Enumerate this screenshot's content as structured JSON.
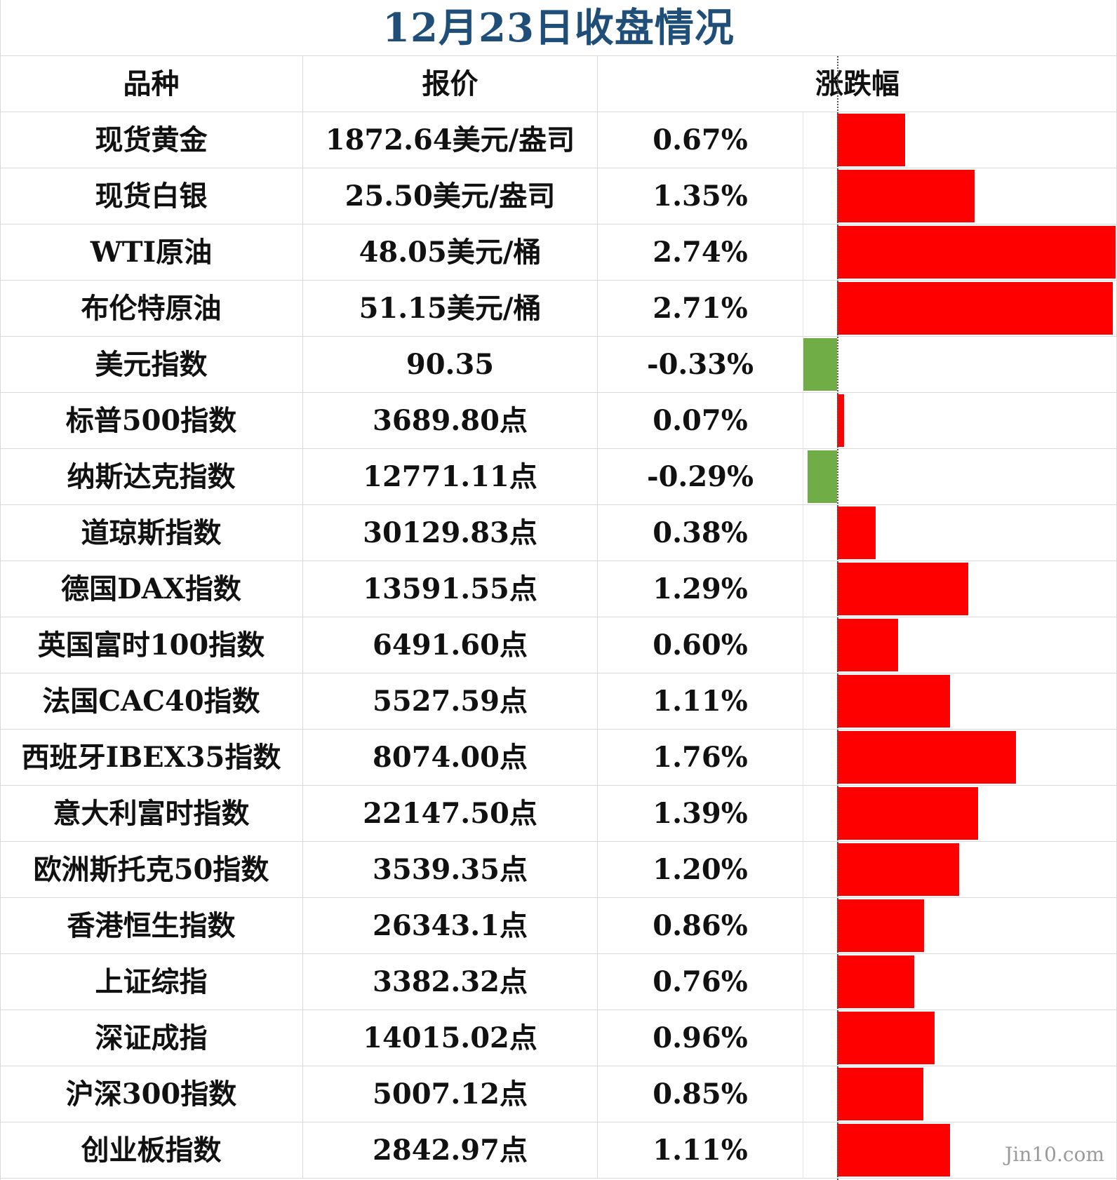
{
  "title": "12月23日收盘情况",
  "watermark": "Jin10.com",
  "colors": {
    "title": "#1f4e79",
    "positive": "#ff0000",
    "negative": "#70ad47"
  },
  "chart_data": {
    "type": "bar",
    "headers": [
      "品种",
      "报价",
      "涨跌幅"
    ],
    "categories": [
      "现货黄金",
      "现货白银",
      "WTI原油",
      "布伦特原油",
      "美元指数",
      "标普500指数",
      "纳斯达克指数",
      "道琼斯指数",
      "德国DAX指数",
      "英国富时100指数",
      "法国CAC40指数",
      "西班牙IBEX35指数",
      "意大利富时指数",
      "欧洲斯托克50指数",
      "香港恒生指数",
      "上证综指",
      "深证成指",
      "沪深300指数",
      "创业板指数"
    ],
    "prices": [
      "1872.64美元/盎司",
      "25.50美元/盎司",
      "48.05美元/桶",
      "51.15美元/桶",
      "90.35",
      "3689.80点",
      "12771.11点",
      "30129.83点",
      "13591.55点",
      "6491.60点",
      "5527.59点",
      "8074.00点",
      "22147.50点",
      "3539.35点",
      "26343.1点",
      "3382.32点",
      "14015.02点",
      "5007.12点",
      "2842.97点"
    ],
    "labels": [
      "0.67%",
      "1.35%",
      "2.74%",
      "2.71%",
      "-0.33%",
      "0.07%",
      "-0.29%",
      "0.38%",
      "1.29%",
      "0.60%",
      "1.11%",
      "1.76%",
      "1.39%",
      "1.20%",
      "0.86%",
      "0.76%",
      "0.96%",
      "0.85%",
      "1.11%"
    ],
    "values": [
      0.67,
      1.35,
      2.74,
      2.71,
      -0.33,
      0.07,
      -0.29,
      0.38,
      1.29,
      0.6,
      1.11,
      1.76,
      1.39,
      1.2,
      0.86,
      0.76,
      0.96,
      0.85,
      1.11
    ],
    "xlim": [
      -0.33,
      2.74
    ]
  }
}
